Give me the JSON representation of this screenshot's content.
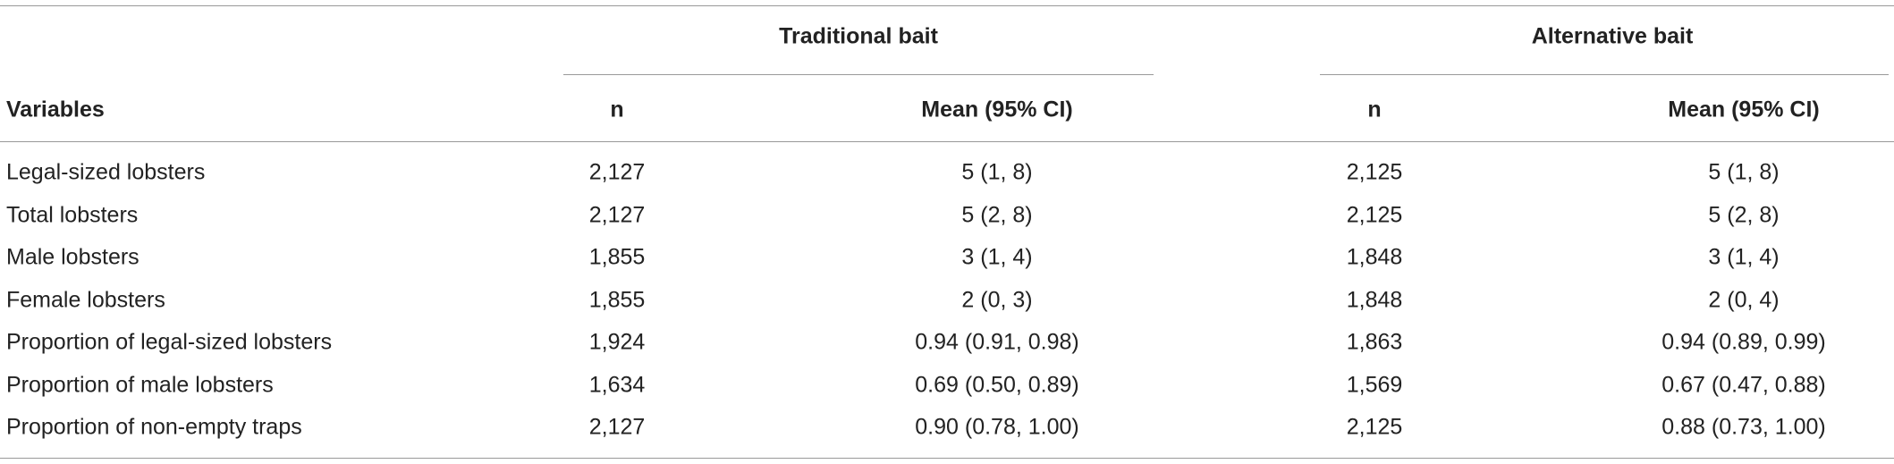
{
  "header": {
    "groups": [
      "Traditional bait",
      "Alternative bait"
    ],
    "columns": [
      "Variables",
      "n",
      "Mean (95% CI)",
      "n",
      "Mean (95% CI)"
    ]
  },
  "table": {
    "rows": [
      [
        "Legal-sized lobsters",
        "2,127",
        "5 (1, 8)",
        "2,125",
        "5 (1, 8)"
      ],
      [
        "Total lobsters",
        "2,127",
        "5 (2, 8)",
        "2,125",
        "5 (2, 8)"
      ],
      [
        "Male lobsters",
        "1,855",
        "3 (1, 4)",
        "1,848",
        "3 (1, 4)"
      ],
      [
        "Female lobsters",
        "1,855",
        "2 (0, 3)",
        "1,848",
        "2 (0, 4)"
      ],
      [
        "Proportion of legal-sized lobsters",
        "1,924",
        "0.94 (0.91, 0.98)",
        "1,863",
        "0.94 (0.89, 0.99)"
      ],
      [
        "Proportion of male lobsters",
        "1,634",
        "0.69 (0.50, 0.89)",
        "1,569",
        "0.67 (0.47, 0.88)"
      ],
      [
        "Proportion of non-empty traps",
        "2,127",
        "0.90 (0.78, 1.00)",
        "2,125",
        "0.88 (0.73, 1.00)"
      ]
    ]
  }
}
